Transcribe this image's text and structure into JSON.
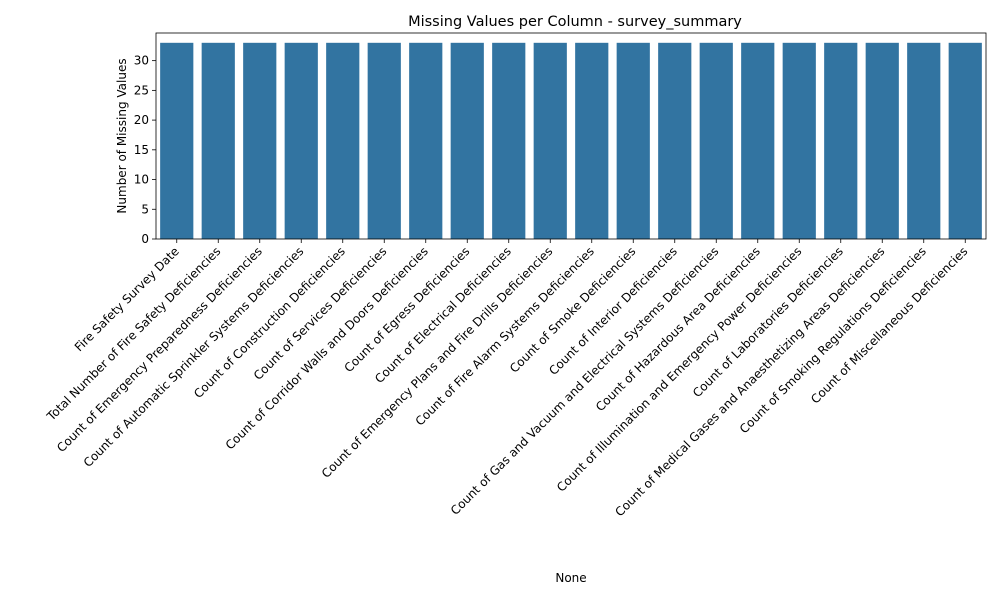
{
  "chart_data": {
    "type": "bar",
    "title": "Missing Values per Column - survey_summary",
    "xlabel": "None",
    "ylabel": "Number of Missing Values",
    "ylim": [
      0,
      34.65
    ],
    "yticks": [
      0,
      5,
      10,
      15,
      20,
      25,
      30
    ],
    "grid": false,
    "bar_color": "#3274a1",
    "categories": [
      "Fire Safety Survey Date",
      "Total Number of Fire Safety Deficiencies",
      "Count of Emergency Preparedness Deficiencies",
      "Count of Automatic Sprinkler Systems Deficiencies",
      "Count of Construction Deficiencies",
      "Count of Services Deficiencies",
      "Count of Corridor Walls and Doors Deficiencies",
      "Count of Egress Deficiencies",
      "Count of Electrical Deficiencies",
      "Count of Emergency Plans and Fire Drills Deficiencies",
      "Count of Fire Alarm Systems Deficiencies",
      "Count of Smoke Deficiencies",
      "Count of Interior Deficiencies",
      "Count of Gas and Vacuum and Electrical Systems Deficiencies",
      "Count of Hazardous Area Deficiencies",
      "Count of Illumination and Emergency Power Deficiencies",
      "Count of Laboratories Deficiencies",
      "Count of Medical Gases and Anaesthetizing Areas Deficiencies",
      "Count of Smoking Regulations Deficiencies",
      "Count of Miscellaneous Deficiencies"
    ],
    "values": [
      33,
      33,
      33,
      33,
      33,
      33,
      33,
      33,
      33,
      33,
      33,
      33,
      33,
      33,
      33,
      33,
      33,
      33,
      33,
      33
    ]
  }
}
